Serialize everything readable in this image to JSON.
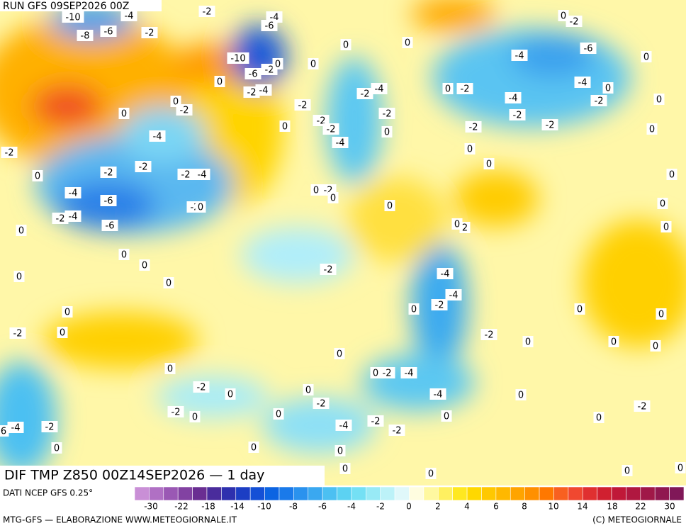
{
  "header": {
    "run": "RUN GFS 09SEP2026 00Z",
    "title": "DIF TMP Z850 00Z14SEP2026 — 1 day"
  },
  "map": {
    "contour_labels": [
      "-10",
      "-4",
      "-2",
      "-4",
      "-6",
      "-8",
      "-6",
      "-2",
      "0",
      "-2",
      "0",
      "0",
      "-4",
      "-6",
      "0",
      "-10",
      "0",
      "-6",
      "-2",
      "0",
      "0",
      "-2",
      "-4",
      "-2",
      "-4",
      "0",
      "-2",
      "-4",
      "-4",
      "0",
      "-2",
      "0",
      "0",
      "-2",
      "-2",
      "-2",
      "-2",
      "0",
      "0",
      "-2",
      "-2",
      "-2",
      "-2",
      "0",
      "-4",
      "-4",
      "0",
      "0",
      "0",
      "-2",
      "-2",
      "-2",
      "-2",
      "-4",
      "0",
      "0",
      "0",
      "-2",
      "-4",
      "-6",
      "0",
      "-2",
      "-4",
      "-6",
      "-2",
      "0",
      "0",
      "0",
      "0",
      "0",
      "2",
      "0",
      "0",
      "0",
      "-2",
      "-4",
      "0",
      "0",
      "-4",
      "-2",
      "0",
      "0",
      "0",
      "0",
      "-2",
      "0",
      "-2",
      "0",
      "0",
      "0",
      "0",
      "0",
      "0",
      "-2",
      "-4",
      "-2",
      "0",
      "0",
      "-4",
      "0",
      "-2",
      "-2",
      "0",
      "0",
      "0",
      "-2",
      "0",
      "-4",
      "6",
      "-2",
      "-4",
      "-2",
      "-2",
      "0",
      "0",
      "0",
      "0",
      "0",
      "0",
      "0"
    ]
  },
  "legend": {
    "source": "DATI NCEP GFS 0.25°",
    "colors": [
      "#c98fd6",
      "#b070c4",
      "#9a58b4",
      "#8242a2",
      "#6a2e92",
      "#4a2c9c",
      "#2e30ae",
      "#1c3ec4",
      "#1450d6",
      "#0c64e2",
      "#1a7aea",
      "#2a92ee",
      "#3aa8f0",
      "#4cc0f2",
      "#5cd2f2",
      "#74e0f4",
      "#98eaf6",
      "#bcf2f8",
      "#e0f8fa",
      "#fffde0",
      "#fff8a0",
      "#fff060",
      "#ffe820",
      "#ffd800",
      "#ffc800",
      "#ffb800",
      "#ffa400",
      "#ff9000",
      "#ff7800",
      "#f86020",
      "#f04830",
      "#e03030",
      "#d02030",
      "#c01838",
      "#b01840",
      "#a01848",
      "#901850",
      "#801858"
    ],
    "labels": [
      "-30",
      "-22",
      "-18",
      "-14",
      "-10",
      "-8",
      "-6",
      "-4",
      "-2",
      "0",
      "2",
      "4",
      "6",
      "8",
      "10",
      "14",
      "18",
      "22",
      "30"
    ]
  },
  "footer": {
    "left": "MTG-GFS — ELABORAZIONE WWW.METEOGIORNALE.IT",
    "right": "(C) METEOGIORNALE"
  }
}
